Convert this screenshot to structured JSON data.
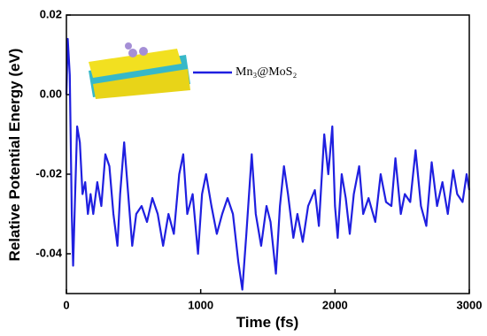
{
  "chart_data": {
    "type": "line",
    "xlabel": "Time (fs)",
    "ylabel": "Relative Potential Energy (eV)",
    "xlim": [
      0,
      3000
    ],
    "xticks": [
      0,
      1000,
      2000,
      3000
    ],
    "ylim": [
      -0.05,
      0.02
    ],
    "yticks": [
      0.02,
      {
        "value": 0,
        "label": "0.00"
      },
      -0.02,
      -0.04
    ],
    "x": [
      0,
      10,
      25,
      40,
      50,
      65,
      80,
      100,
      120,
      140,
      160,
      180,
      200,
      230,
      260,
      290,
      320,
      350,
      380,
      400,
      430,
      460,
      490,
      520,
      560,
      600,
      640,
      680,
      720,
      760,
      800,
      840,
      870,
      900,
      940,
      980,
      1010,
      1040,
      1080,
      1120,
      1160,
      1200,
      1240,
      1280,
      1310,
      1340,
      1380,
      1410,
      1450,
      1490,
      1520,
      1560,
      1590,
      1620,
      1650,
      1690,
      1720,
      1760,
      1800,
      1850,
      1880,
      1920,
      1950,
      1980,
      2000,
      2020,
      2050,
      2080,
      2110,
      2140,
      2180,
      2210,
      2250,
      2300,
      2340,
      2380,
      2420,
      2450,
      2490,
      2520,
      2560,
      2600,
      2640,
      2680,
      2720,
      2760,
      2800,
      2840,
      2880,
      2910,
      2950,
      2980,
      3000
    ],
    "series": [
      {
        "name": "Mn₃@MoS₂",
        "color": "#1f1fe0",
        "values": [
          0.0,
          0.014,
          0.005,
          -0.03,
          -0.043,
          -0.025,
          -0.008,
          -0.012,
          -0.025,
          -0.022,
          -0.03,
          -0.025,
          -0.03,
          -0.022,
          -0.028,
          -0.015,
          -0.018,
          -0.03,
          -0.038,
          -0.025,
          -0.012,
          -0.025,
          -0.038,
          -0.03,
          -0.028,
          -0.032,
          -0.026,
          -0.03,
          -0.038,
          -0.03,
          -0.035,
          -0.02,
          -0.015,
          -0.03,
          -0.025,
          -0.04,
          -0.025,
          -0.02,
          -0.028,
          -0.035,
          -0.03,
          -0.026,
          -0.03,
          -0.042,
          -0.049,
          -0.035,
          -0.015,
          -0.03,
          -0.038,
          -0.028,
          -0.032,
          -0.045,
          -0.028,
          -0.018,
          -0.025,
          -0.036,
          -0.03,
          -0.037,
          -0.028,
          -0.024,
          -0.033,
          -0.01,
          -0.02,
          -0.008,
          -0.028,
          -0.036,
          -0.02,
          -0.026,
          -0.035,
          -0.025,
          -0.018,
          -0.03,
          -0.026,
          -0.032,
          -0.02,
          -0.027,
          -0.028,
          -0.016,
          -0.03,
          -0.025,
          -0.027,
          -0.014,
          -0.028,
          -0.033,
          -0.017,
          -0.028,
          -0.022,
          -0.03,
          -0.019,
          -0.025,
          -0.027,
          -0.02,
          -0.024
        ]
      }
    ]
  }
}
